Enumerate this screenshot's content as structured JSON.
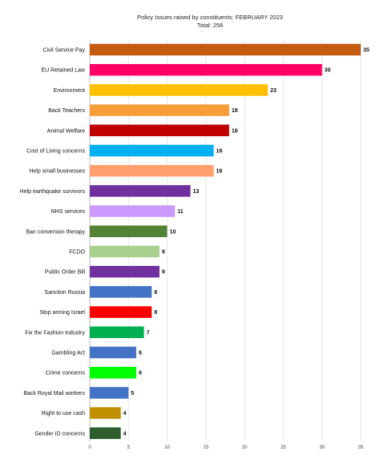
{
  "chart_data": {
    "type": "bar",
    "orientation": "horizontal",
    "title": "Policy  Issues  raised  by  constituents:   FEBRUARY  2023",
    "subtitle": "Total:  256",
    "categories": [
      "Civil Service Pay",
      "EU Retained Law",
      "Environment",
      "Back Teachers",
      "Animal Welfare",
      "Cost of Living concerns",
      "Help small businesses",
      "Help earthquake survivors",
      "NHS services",
      "Ban conversion therapy",
      "FCDO",
      "Public Order Bill",
      "Sanction Russia",
      "Stop arming Israel",
      "Fix the Fashion Industry",
      "Gambling Act",
      "Crime concerns",
      "Back Royal Mail workers",
      "Right to use cash",
      "Gender ID concerns"
    ],
    "values": [
      35,
      30,
      23,
      18,
      18,
      16,
      16,
      13,
      11,
      10,
      9,
      9,
      8,
      8,
      7,
      6,
      6,
      5,
      4,
      4
    ],
    "colors": [
      "#c55a11",
      "#ff0066",
      "#ffc000",
      "#f79e39",
      "#c00000",
      "#00b0f0",
      "#ffa06e",
      "#7030a0",
      "#cc99ff",
      "#548235",
      "#a9d18e",
      "#7030a0",
      "#4472c4",
      "#ff0000",
      "#00b050",
      "#4472c4",
      "#00ff00",
      "#4472c4",
      "#bf9000",
      "#2e5e2e"
    ],
    "xlim": [
      0,
      35
    ],
    "xticks": [
      0,
      5,
      10,
      15,
      20,
      25,
      30,
      35
    ],
    "grid": true,
    "legend": "none"
  }
}
